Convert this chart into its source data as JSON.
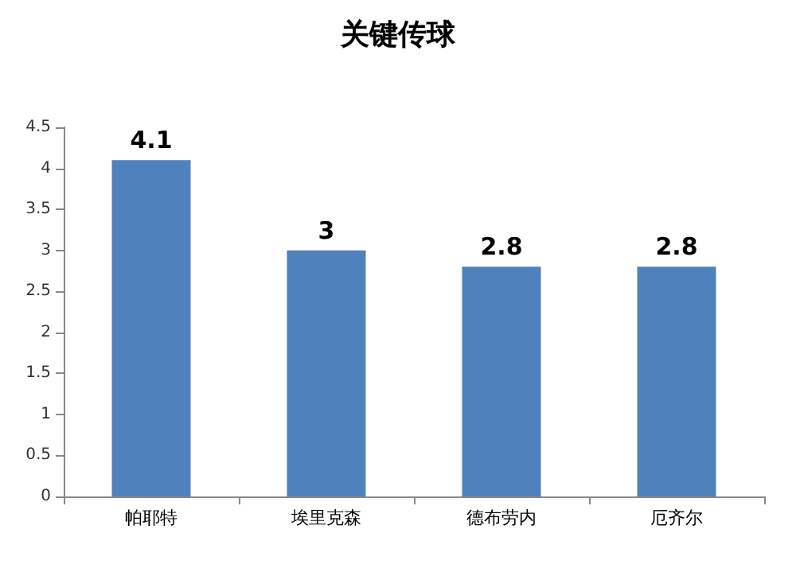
{
  "chart_data": {
    "type": "bar",
    "title": "关键传球",
    "categories": [
      "帕耶特",
      "埃里克森",
      "德布劳内",
      "厄齐尔"
    ],
    "values": [
      4.1,
      3,
      2.8,
      2.8
    ],
    "color": "#4f81bd",
    "ylim": [
      0,
      4.5
    ],
    "yticks": [
      0,
      0.5,
      1,
      1.5,
      2,
      2.5,
      3,
      3.5,
      4,
      4.5
    ],
    "grid": false,
    "data_labels": true
  }
}
